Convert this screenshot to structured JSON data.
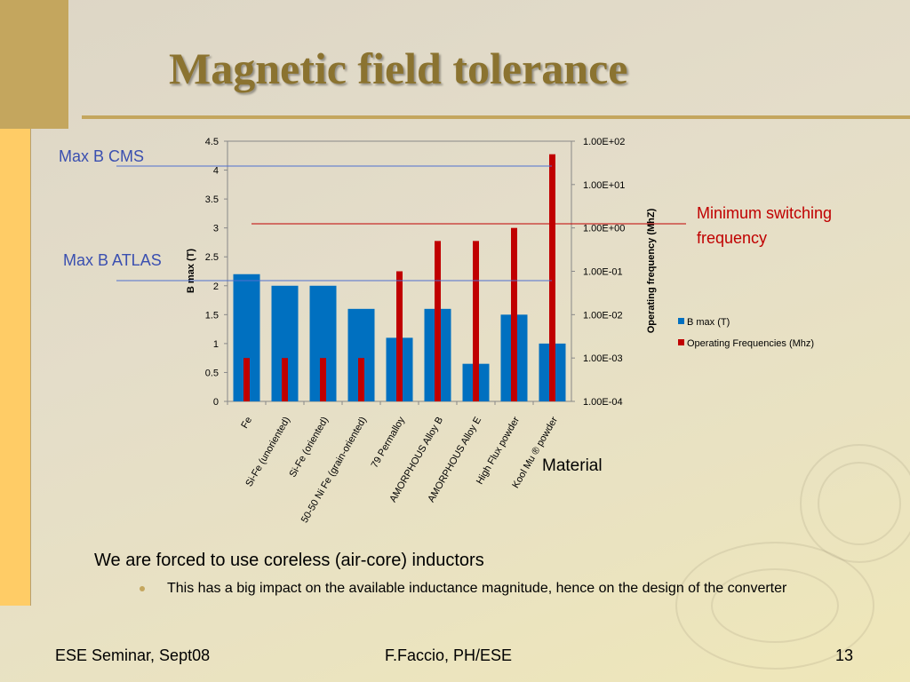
{
  "slide": {
    "title": "Magnetic field tolerance",
    "annotations": {
      "max_b_cms": "Max B CMS",
      "max_b_atlas": "Max B ATLAS",
      "min_switching_line1": "Minimum switching",
      "min_switching_line2": "frequency"
    },
    "bullets": {
      "main": "We are forced to use coreless (air-core) inductors",
      "sub": "This has a big impact on the available inductance magnitude, hence on the design of the converter"
    },
    "footer": {
      "left": "ESE Seminar, Sept08",
      "center": "F.Faccio, PH/ESE",
      "page_number": "13"
    },
    "colors": {
      "title": "#8b7330",
      "accent": "#c4a65e",
      "left_bar": "#ffcc66",
      "b_max_series": "#0070c0",
      "frequency_series": "#c00000",
      "cms_line": "#4f6fd0",
      "switching_line": "#c00000"
    }
  },
  "chart_data": {
    "type": "bar",
    "xlabel": "Material",
    "ylabel": "B max (T)",
    "ylabel_right": "Operating frequency (MhZ)",
    "categories": [
      "Fe",
      "Si-Fe  (unoriented)",
      "Si-Fe  (oriented)",
      "50-50 Ni Fe (grain-oriented)",
      "79 Permalloy",
      "AMORPHOUS  Alloy  B",
      "AMORPHOUS  Alloy  E",
      "High Flux powder",
      "Kool Mu ® powder"
    ],
    "y_ticks": [
      "0",
      "0.5",
      "1",
      "1.5",
      "2",
      "2.5",
      "3",
      "3.5",
      "4",
      "4.5"
    ],
    "y_right_ticks": [
      "1.00E-04",
      "1.00E-03",
      "1.00E-02",
      "1.00E-01",
      "1.00E+00",
      "1.00E+01",
      "1.00E+02"
    ],
    "ylim": [
      0,
      4.5
    ],
    "y_right_lim": [
      0.0001,
      100
    ],
    "y_right_scale": "log",
    "legend_position": "right",
    "series": [
      {
        "name": "B max (T)",
        "axis": "left",
        "values": [
          2.2,
          2.0,
          2.0,
          1.6,
          1.1,
          1.6,
          0.65,
          1.5,
          1.0
        ]
      },
      {
        "name": "Operating Frequencies (Mhz)",
        "axis": "right",
        "values": [
          0.001,
          0.001,
          0.001,
          0.001,
          0.1,
          0.5,
          0.5,
          1.0,
          50
        ]
      }
    ],
    "reference_lines": [
      {
        "axis": "left",
        "value": 4.0,
        "label": "Max B CMS"
      },
      {
        "axis": "left",
        "value": 2.0,
        "label": "Max B ATLAS"
      },
      {
        "axis": "right",
        "value": 1.0,
        "label": "Minimum switching frequency"
      }
    ]
  }
}
